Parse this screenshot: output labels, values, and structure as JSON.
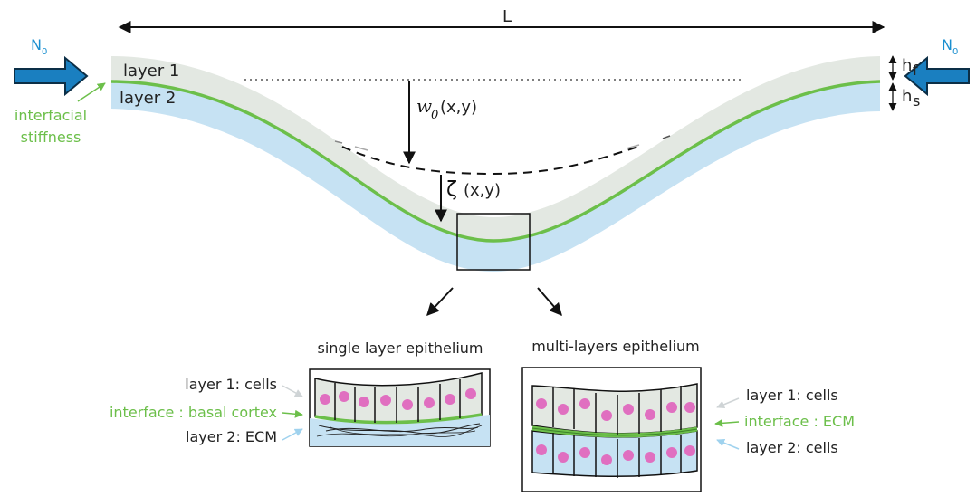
{
  "labels": {
    "length": "L",
    "force_left": "N",
    "force_right": "N",
    "force_sub": "0",
    "layer1": "layer 1",
    "layer2": "layer 2",
    "interfacial_1": "interfacial",
    "interfacial_2": "stiffness",
    "h_f_main": "h",
    "h_f_sub": "f",
    "h_s_main": "h",
    "h_s_sub": "s",
    "w0_symbol": "w",
    "w0_sub": "0",
    "w0_args": "(x,y)",
    "zeta_symbol": "ζ",
    "zeta_args": "(x,y)"
  },
  "single_layer": {
    "title": "single layer epithelium",
    "layer1": "layer 1: cells",
    "interface": "interface : basal cortex",
    "layer2": "layer 2: ECM"
  },
  "multi_layer": {
    "title": "multi-layers epithelium",
    "layer1": "layer 1: cells",
    "interface": "interface : ECM",
    "layer2": "layer 2: cells"
  },
  "colors": {
    "layer1_fill": "#e3e8e2",
    "layer2_fill": "#c6e2f3",
    "interface": "#6cbf4a",
    "force_arrow": "#1a7fc0",
    "nucleus": "#e06fc0",
    "label_gray_arrow": "#cfd4d6",
    "label_blue_arrow": "#9fd2ee"
  },
  "icons": {
    "force_arrow": "right-arrow-icon",
    "nucleus": "cell-nucleus"
  }
}
